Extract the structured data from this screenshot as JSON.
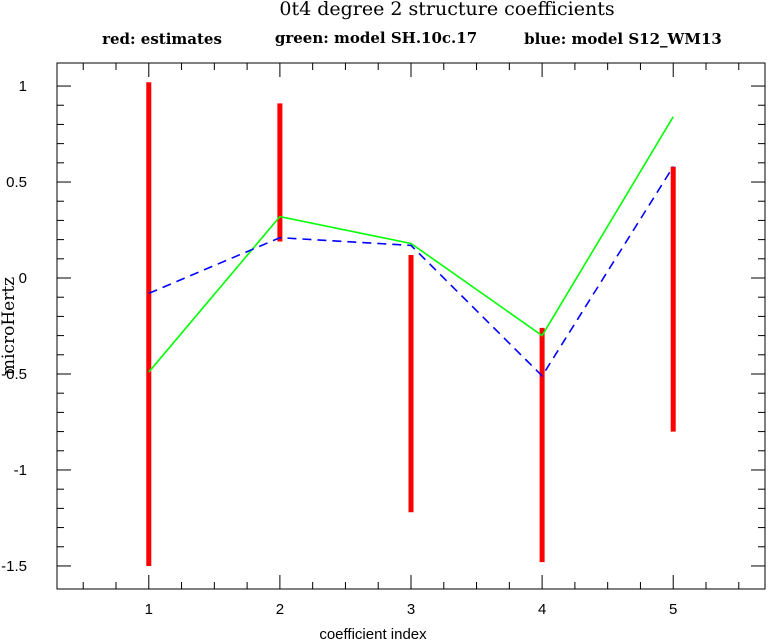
{
  "chart_data": {
    "type": "line",
    "title": "0t4 degree 2 structure coefficients",
    "legend_placement": "top",
    "xlabel": "coefficient index",
    "ylabel": "microHertz",
    "xlim": [
      0.3,
      5.7
    ],
    "ylim": [
      -1.62,
      1.12
    ],
    "x_ticks": [
      1,
      2,
      3,
      4,
      5
    ],
    "x_tick_labels": [
      "1",
      "2",
      "3",
      "4",
      "5"
    ],
    "y_ticks": [
      1,
      0.5,
      0,
      -0.5,
      -1,
      -1.5
    ],
    "y_tick_labels": [
      "1",
      "0.5",
      "0",
      "-0.5",
      "-1",
      "-1.5"
    ],
    "grid": false,
    "series": [
      {
        "name": "red: estimates",
        "style": "error-bars",
        "color": "#ff0000",
        "x": [
          1,
          2,
          3,
          4,
          5
        ],
        "low": [
          -1.5,
          0.19,
          -1.22,
          -1.48,
          -0.8
        ],
        "high": [
          1.02,
          0.91,
          0.12,
          -0.26,
          0.58
        ]
      },
      {
        "name": "green: model SH.10c.17",
        "style": "solid",
        "color": "#00ff00",
        "x": [
          1,
          2,
          3,
          4,
          5
        ],
        "values": [
          -0.49,
          0.32,
          0.18,
          -0.3,
          0.84
        ]
      },
      {
        "name": "blue: model S12_WM13",
        "style": "dashed",
        "color": "#0000ff",
        "x": [
          1,
          2,
          3,
          4,
          5
        ],
        "values": [
          -0.08,
          0.21,
          0.17,
          -0.51,
          0.58
        ]
      }
    ]
  }
}
